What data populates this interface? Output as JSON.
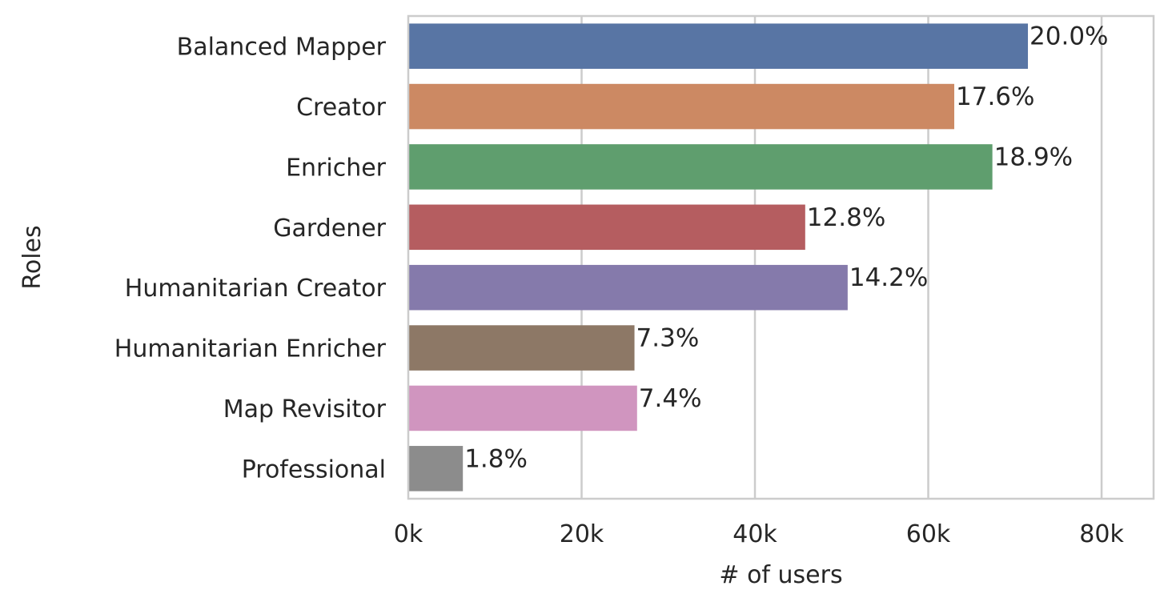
{
  "chart_data": {
    "type": "bar",
    "orientation": "horizontal",
    "categories": [
      "Balanced Mapper",
      "Creator",
      "Enricher",
      "Gardener",
      "Humanitarian Creator",
      "Humanitarian Enricher",
      "Map Revisitor",
      "Professional"
    ],
    "values": [
      71500,
      63000,
      67400,
      45800,
      50700,
      26100,
      26400,
      6300
    ],
    "data_labels": [
      "20.0%",
      "17.6%",
      "18.9%",
      "12.8%",
      "14.2%",
      "7.3%",
      "7.4%",
      "1.8%"
    ],
    "colors": [
      "#5875a4",
      "#cc8963",
      "#5f9e6e",
      "#b55d60",
      "#857aab",
      "#8d7866",
      "#d095bf",
      "#8c8c8c"
    ],
    "xlim": [
      0,
      86000
    ],
    "xticks": [
      0,
      20000,
      40000,
      60000,
      80000
    ],
    "xtick_labels": [
      "0k",
      "20k",
      "40k",
      "60k",
      "80k"
    ],
    "xlabel": "# of users",
    "ylabel": "Roles",
    "grid": "vertical",
    "style": "whitegrid"
  }
}
